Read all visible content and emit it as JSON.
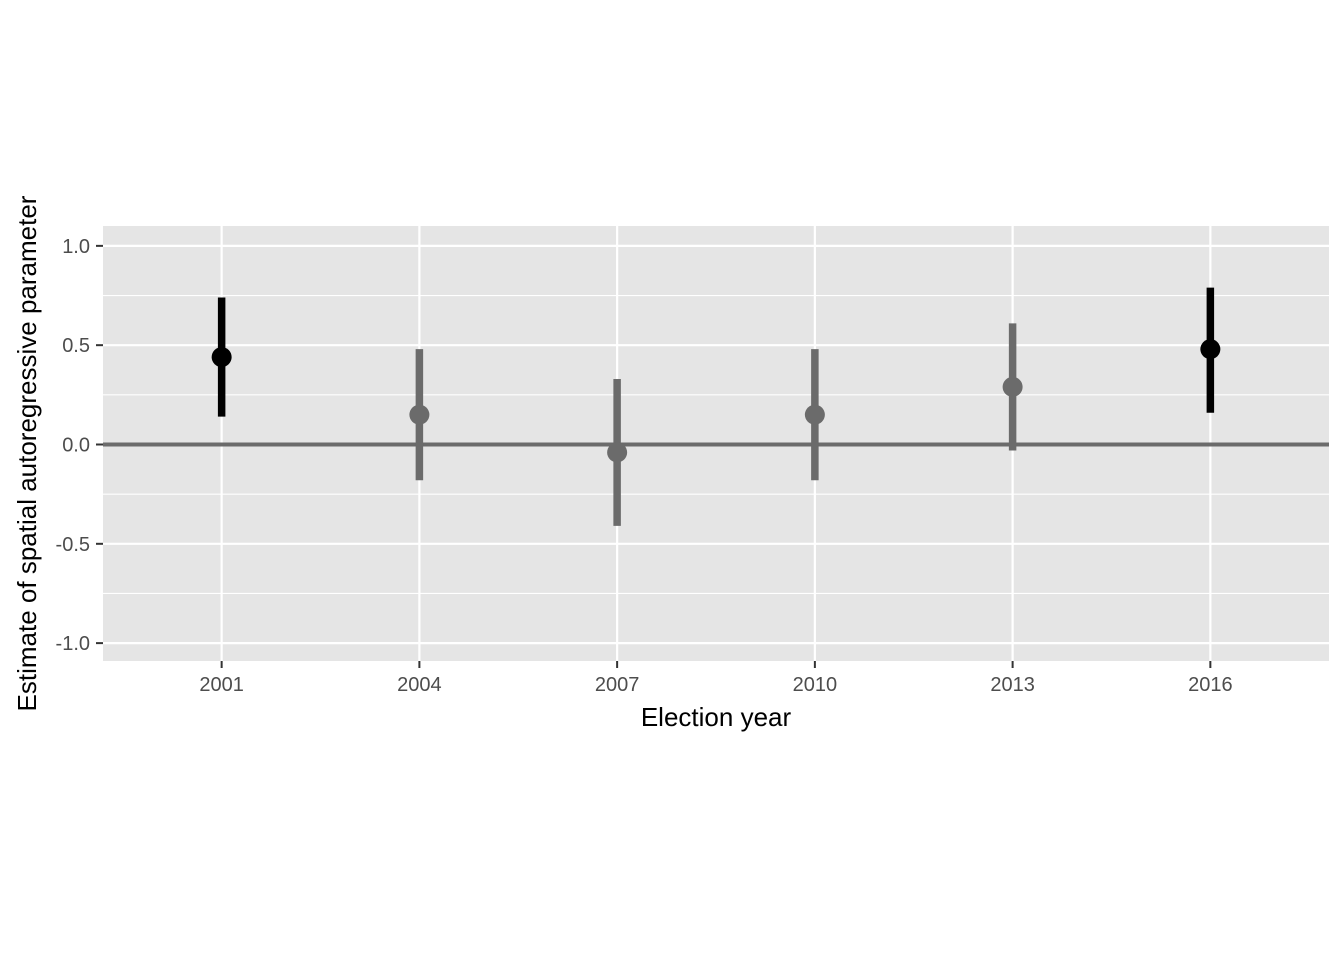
{
  "chart_data": {
    "type": "scatter",
    "title": "",
    "xlabel": "Election year",
    "ylabel": "Estimate of spatial autoregressive parameter",
    "x_ticks": [
      "2001",
      "2004",
      "2007",
      "2010",
      "2013",
      "2016"
    ],
    "y_ticks": [
      "-1.0",
      "-0.5",
      "0.0",
      "0.5",
      "1.0"
    ],
    "y_tick_values": [
      -1.0,
      -0.5,
      0.0,
      0.5,
      1.0
    ],
    "xlim": [
      1999.2,
      2017.8
    ],
    "ylim": [
      -1.09,
      1.1
    ],
    "grid": true,
    "reference_line": 0.0,
    "points": [
      {
        "x": 2001,
        "estimate": 0.44,
        "lower": 0.14,
        "upper": 0.74,
        "significant": true
      },
      {
        "x": 2004,
        "estimate": 0.15,
        "lower": -0.18,
        "upper": 0.48,
        "significant": false
      },
      {
        "x": 2007,
        "estimate": -0.04,
        "lower": -0.41,
        "upper": 0.33,
        "significant": false
      },
      {
        "x": 2010,
        "estimate": 0.15,
        "lower": -0.18,
        "upper": 0.48,
        "significant": false
      },
      {
        "x": 2013,
        "estimate": 0.29,
        "lower": -0.03,
        "upper": 0.61,
        "significant": false
      },
      {
        "x": 2016,
        "estimate": 0.48,
        "lower": 0.16,
        "upper": 0.79,
        "significant": true
      }
    ],
    "colors": {
      "panel_background": "#e5e5e5",
      "grid": "#ffffff",
      "significant": "#000000",
      "not_significant": "#6b6b6b",
      "reference_line": "#6b6b6b"
    }
  }
}
